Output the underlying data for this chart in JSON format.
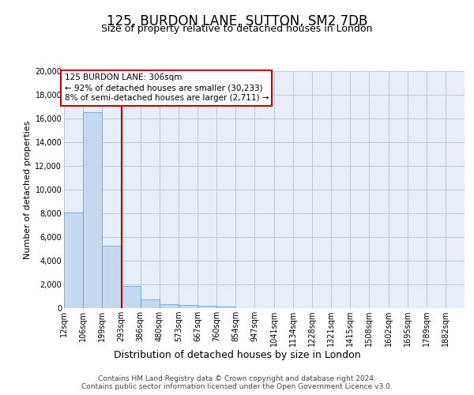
{
  "title": "125, BURDON LANE, SUTTON, SM2 7DB",
  "subtitle": "Size of property relative to detached houses in London",
  "xlabel": "Distribution of detached houses by size in London",
  "ylabel": "Number of detached properties",
  "bar_color": "#c5d8ee",
  "bar_edge_color": "#5b9bd5",
  "vline_color": "#cc0000",
  "vline_xval": 293,
  "annotation_line1": "125 BURDON LANE: 306sqm",
  "annotation_line2": "← 92% of detached houses are smaller (30,233)",
  "annotation_line3": "8% of semi-detached houses are larger (2,711) →",
  "annotation_box_color": "#ffffff",
  "annotation_box_edge_color": "#cc0000",
  "bin_edges": [
    12,
    106,
    199,
    293,
    386,
    480,
    573,
    667,
    760,
    854,
    947,
    1041,
    1134,
    1228,
    1321,
    1415,
    1508,
    1602,
    1695,
    1789,
    1882
  ],
  "bin_width": 93,
  "values": [
    8100,
    16500,
    5300,
    1850,
    750,
    350,
    270,
    200,
    160,
    0,
    0,
    0,
    0,
    0,
    0,
    0,
    0,
    0,
    0,
    0,
    0
  ],
  "ylim": [
    0,
    20000
  ],
  "yticks": [
    0,
    2000,
    4000,
    6000,
    8000,
    10000,
    12000,
    14000,
    16000,
    18000,
    20000
  ],
  "categories": [
    "12sqm",
    "106sqm",
    "199sqm",
    "293sqm",
    "386sqm",
    "480sqm",
    "573sqm",
    "667sqm",
    "760sqm",
    "854sqm",
    "947sqm",
    "1041sqm",
    "1134sqm",
    "1228sqm",
    "1321sqm",
    "1415sqm",
    "1508sqm",
    "1602sqm",
    "1695sqm",
    "1789sqm",
    "1882sqm"
  ],
  "footnote1": "Contains HM Land Registry data © Crown copyright and database right 2024.",
  "footnote2": "Contains public sector information licensed under the Open Government Licence v3.0.",
  "bg_color": "#e8eef8",
  "grid_color": "#c0c8d8",
  "title_fontsize": 12,
  "subtitle_fontsize": 9,
  "ylabel_fontsize": 8,
  "xlabel_fontsize": 9,
  "tick_fontsize": 7,
  "footnote_fontsize": 6.5
}
